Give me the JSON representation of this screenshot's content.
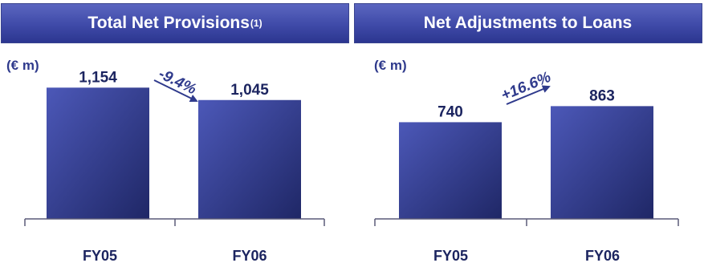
{
  "charts": [
    {
      "header": {
        "title": "Total Net Provisions",
        "footnote": "(1)"
      },
      "unit": "(€ m)",
      "change": "-9.4%"
    },
    {
      "header": {
        "title": "Net Adjustments to Loans",
        "footnote": ""
      },
      "unit": "(€ m)",
      "change": "+16.6%"
    }
  ],
  "colors": {
    "bar_top": "#4c58b8",
    "bar_bottom": "#1f2766",
    "header": "#4450ae",
    "text": "#1c2560",
    "arrow": "#2f3a8c"
  },
  "chart_data": [
    {
      "type": "bar",
      "title": "Total Net Provisions(1)",
      "categories": [
        "FY05",
        "FY06"
      ],
      "values": [
        1154,
        1045
      ],
      "value_labels": [
        "1,154",
        "1,045"
      ],
      "ylabel": "(€ m)",
      "ylim": [
        0,
        1290
      ],
      "annotation": "-9.4%",
      "grid": false
    },
    {
      "type": "bar",
      "title": "Net Adjustments to Loans",
      "categories": [
        "FY05",
        "FY06"
      ],
      "values": [
        740,
        863
      ],
      "value_labels": [
        "740",
        "863"
      ],
      "ylabel": "(€ m)",
      "ylim": [
        0,
        1123
      ],
      "annotation": "+16.6%",
      "grid": false
    }
  ]
}
